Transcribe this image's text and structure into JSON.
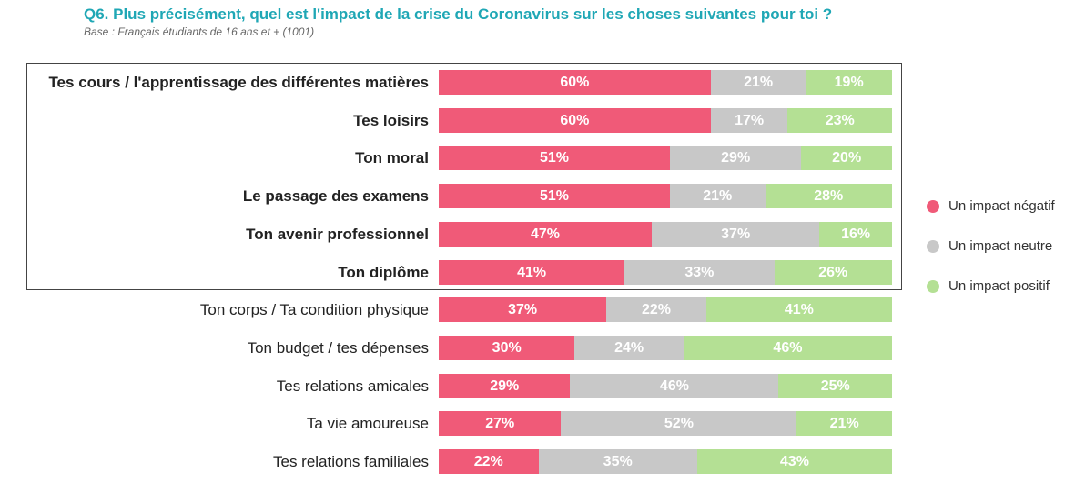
{
  "title": "Q6. Plus précisément, quel est l'impact de la crise du Coronavirus sur les choses suivantes pour toi ?",
  "subtitle": "Base : Français étudiants de 16 ans et + (1001)",
  "colors": {
    "negatif": "#f05a78",
    "neutre": "#c8c8c8",
    "positif": "#b4e094",
    "title": "#1fa7b5"
  },
  "legend": [
    {
      "label": "Un impact négatif",
      "color": "#f05a78"
    },
    {
      "label": "Un impact neutre",
      "color": "#c8c8c8"
    },
    {
      "label": "Un impact positif",
      "color": "#b4e094"
    }
  ],
  "chart_data": {
    "type": "bar",
    "orientation": "horizontal",
    "stacked": true,
    "normalized": true,
    "categories": [
      "Tes cours / l'apprentissage des différentes matières",
      "Tes loisirs",
      "Ton moral",
      "Le passage des examens",
      "Ton avenir professionnel",
      "Ton diplôme",
      "Ton corps / Ta condition physique",
      "Ton budget / tes dépenses",
      "Tes relations amicales",
      "Ta vie amoureuse",
      "Tes relations familiales"
    ],
    "highlighted": [
      true,
      true,
      true,
      true,
      true,
      true,
      false,
      false,
      false,
      false,
      false
    ],
    "series": [
      {
        "name": "Un impact négatif",
        "values": [
          60,
          60,
          51,
          51,
          47,
          41,
          37,
          30,
          29,
          27,
          22
        ]
      },
      {
        "name": "Un impact neutre",
        "values": [
          21,
          17,
          29,
          21,
          37,
          33,
          22,
          24,
          46,
          52,
          35
        ]
      },
      {
        "name": "Un impact positif",
        "values": [
          19,
          23,
          20,
          28,
          16,
          26,
          41,
          46,
          25,
          21,
          43
        ]
      }
    ],
    "value_suffix": "%",
    "legend_position": "right",
    "grid": false
  }
}
